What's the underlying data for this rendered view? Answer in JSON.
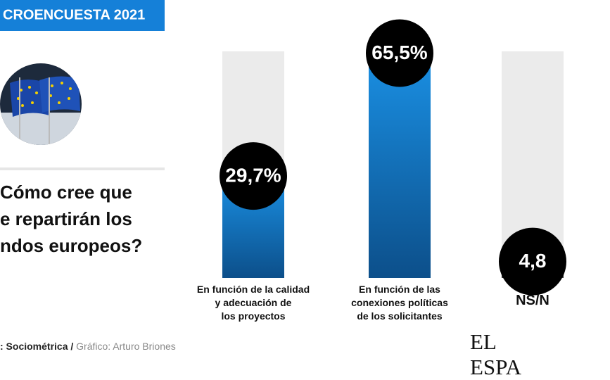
{
  "header": {
    "title": "CROENCUESTA 2021",
    "question": "Cómo cree que\ne repartirán los\nndos europeos?"
  },
  "chart_data": {
    "type": "bar",
    "categories": [
      "En función de la calidad\ny adecuación de\nlos proyectos",
      "En función de las\nconexiones políticas\nde los solicitantes",
      "NS/N"
    ],
    "values": [
      29.7,
      65.5,
      4.8
    ],
    "value_labels": [
      "29,7%",
      "65,5%",
      "4,8"
    ],
    "colors": [
      "#1580d8",
      "#1580d8",
      "#5a5a5a"
    ],
    "ylim": [
      0,
      66
    ]
  },
  "footer": {
    "source": ": Sociométrica /",
    "credit": "Gráfico: Arturo Briones",
    "logo": "EL ESPA"
  }
}
